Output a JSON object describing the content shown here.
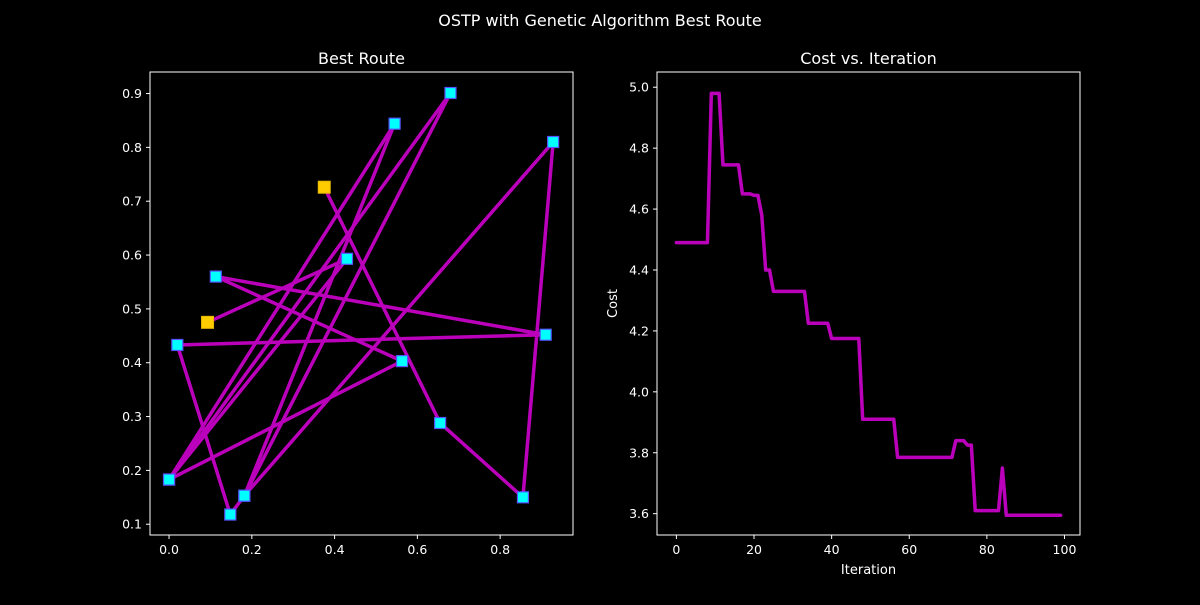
{
  "figure": {
    "title": "OSTP with Genetic Algorithm Best Route"
  },
  "colors": {
    "background": "#000000",
    "axes": "#ffffff",
    "route_line": "#bb00bb",
    "point_fill": "#00ffff",
    "point_edge": "#5555ff",
    "endpoint_fill": "#ffcc00",
    "cost_line": "#bb00bb"
  },
  "chart_data": [
    {
      "type": "line",
      "title": "Best Route",
      "xlabel": "",
      "ylabel": "",
      "xlim": [
        -0.046,
        0.976
      ],
      "ylim": [
        0.08,
        0.94
      ],
      "xticks": [
        0.0,
        0.2,
        0.4,
        0.6,
        0.8
      ],
      "yticks": [
        0.1,
        0.2,
        0.3,
        0.4,
        0.5,
        0.6,
        0.7,
        0.8,
        0.9
      ],
      "grid": false,
      "route": [
        {
          "x": 0.093,
          "y": 0.475,
          "endpoint": true
        },
        {
          "x": 0.43,
          "y": 0.593
        },
        {
          "x": 0.0,
          "y": 0.183
        },
        {
          "x": 0.545,
          "y": 0.844
        },
        {
          "x": 0.182,
          "y": 0.153
        },
        {
          "x": 0.148,
          "y": 0.118
        },
        {
          "x": 0.02,
          "y": 0.433
        },
        {
          "x": 0.91,
          "y": 0.452
        },
        {
          "x": 0.113,
          "y": 0.56
        },
        {
          "x": 0.563,
          "y": 0.403
        },
        {
          "x": 0.0,
          "y": 0.183
        },
        {
          "x": 0.68,
          "y": 0.901
        },
        {
          "x": 0.182,
          "y": 0.153
        },
        {
          "x": 0.928,
          "y": 0.81
        },
        {
          "x": 0.855,
          "y": 0.15
        },
        {
          "x": 0.655,
          "y": 0.288
        },
        {
          "x": 0.375,
          "y": 0.726,
          "endpoint": true
        }
      ]
    },
    {
      "type": "line",
      "title": "Cost vs. Iteration",
      "xlabel": "Iteration",
      "ylabel": "Cost",
      "xlim": [
        -5,
        104
      ],
      "ylim": [
        3.53,
        5.05
      ],
      "xticks": [
        0,
        20,
        40,
        60,
        80,
        100
      ],
      "yticks": [
        3.6,
        3.8,
        4.0,
        4.2,
        4.4,
        4.6,
        4.8,
        5.0
      ],
      "grid": false,
      "x": [
        0,
        1,
        2,
        3,
        4,
        5,
        6,
        7,
        8,
        9,
        10,
        11,
        12,
        13,
        14,
        15,
        16,
        17,
        18,
        19,
        20,
        21,
        22,
        23,
        24,
        25,
        26,
        27,
        28,
        29,
        30,
        31,
        32,
        33,
        34,
        35,
        36,
        37,
        38,
        39,
        40,
        41,
        42,
        43,
        44,
        45,
        46,
        47,
        48,
        49,
        50,
        51,
        52,
        53,
        54,
        55,
        56,
        57,
        58,
        59,
        60,
        61,
        62,
        63,
        64,
        65,
        66,
        67,
        68,
        69,
        70,
        71,
        72,
        73,
        74,
        75,
        76,
        77,
        78,
        79,
        80,
        81,
        82,
        83,
        84,
        85,
        86,
        87,
        88,
        89,
        90,
        91,
        92,
        93,
        94,
        95,
        96,
        97,
        98,
        99
      ],
      "values": [
        4.49,
        4.49,
        4.49,
        4.49,
        4.49,
        4.49,
        4.49,
        4.49,
        4.49,
        4.98,
        4.98,
        4.98,
        4.745,
        4.745,
        4.745,
        4.745,
        4.745,
        4.65,
        4.65,
        4.65,
        4.645,
        4.645,
        4.58,
        4.4,
        4.4,
        4.33,
        4.33,
        4.33,
        4.33,
        4.33,
        4.33,
        4.33,
        4.33,
        4.33,
        4.225,
        4.225,
        4.225,
        4.225,
        4.225,
        4.225,
        4.175,
        4.175,
        4.175,
        4.175,
        4.175,
        4.175,
        4.175,
        4.175,
        3.91,
        3.91,
        3.91,
        3.91,
        3.91,
        3.91,
        3.91,
        3.91,
        3.91,
        3.785,
        3.785,
        3.785,
        3.785,
        3.785,
        3.785,
        3.785,
        3.785,
        3.785,
        3.785,
        3.785,
        3.785,
        3.785,
        3.785,
        3.785,
        3.84,
        3.84,
        3.84,
        3.825,
        3.825,
        3.61,
        3.61,
        3.61,
        3.61,
        3.61,
        3.61,
        3.61,
        3.75,
        3.595,
        3.595,
        3.595,
        3.595,
        3.595,
        3.595,
        3.595,
        3.595,
        3.595,
        3.595,
        3.595,
        3.595,
        3.595,
        3.595,
        3.595
      ]
    }
  ]
}
